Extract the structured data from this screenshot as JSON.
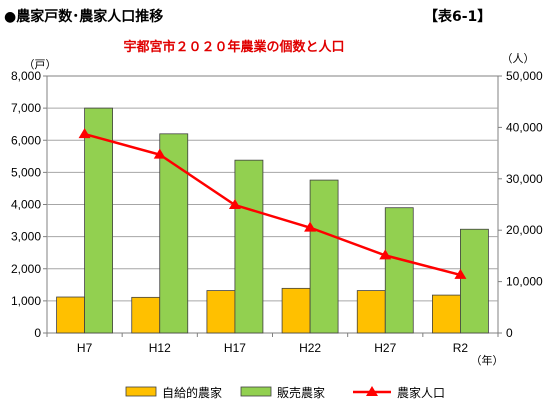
{
  "header": {
    "title": "●農家戸数･農家人口推移",
    "table_ref": "【表6-1】"
  },
  "chart_data": {
    "type": "bar",
    "title": "宇都宮市２０２０年農業の個数と人口",
    "categories": [
      "H7",
      "H12",
      "H17",
      "H22",
      "H27",
      "R2"
    ],
    "x_unit": "（年）",
    "y_left": {
      "unit": "（戸）",
      "range": [
        0,
        8000
      ],
      "ticks": [
        "0",
        "1,000",
        "2,000",
        "3,000",
        "4,000",
        "5,000",
        "6,000",
        "7,000",
        "8,000"
      ]
    },
    "y_right": {
      "unit": "（人）",
      "range": [
        0,
        50000
      ],
      "ticks": [
        "0",
        "10,000",
        "20,000",
        "30,000",
        "40,000",
        "50,000"
      ]
    },
    "grid": true,
    "legend_position": "bottom",
    "series": [
      {
        "name": "自給的農家",
        "kind": "bar",
        "axis": "left",
        "color": "#ffc000",
        "values": [
          1120,
          1110,
          1320,
          1390,
          1320,
          1180
        ]
      },
      {
        "name": "販売農家",
        "kind": "bar",
        "axis": "left",
        "color": "#92d050",
        "values": [
          7000,
          6200,
          5380,
          4760,
          3900,
          3230
        ]
      },
      {
        "name": "農家人口",
        "kind": "line",
        "axis": "right",
        "color": "#ff0000",
        "marker": "triangle",
        "values": [
          38700,
          34700,
          24900,
          20500,
          15100,
          11300
        ]
      }
    ]
  }
}
